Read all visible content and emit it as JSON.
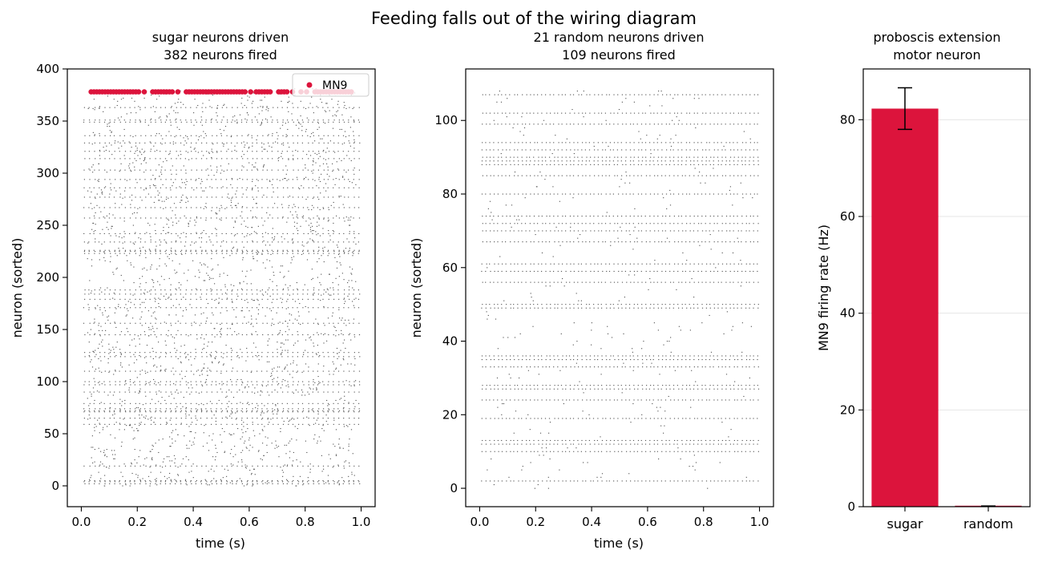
{
  "figure_title": "Feeding falls out of the wiring diagram",
  "chart_data": [
    {
      "type": "scatter",
      "title": "sugar neurons driven",
      "subtitle": "382 neurons fired",
      "xlabel": "time (s)",
      "ylabel": "neuron (sorted)",
      "xlim": [
        -0.05,
        1.05
      ],
      "ylim": [
        -20,
        400
      ],
      "xticks": [
        "0.0",
        "0.2",
        "0.4",
        "0.6",
        "0.8",
        "1.0"
      ],
      "yticks": [
        "0",
        "50",
        "100",
        "150",
        "200",
        "250",
        "300",
        "350",
        "400"
      ],
      "n_neurons": 382,
      "spikes_color": "#555555",
      "highlight": {
        "name": "MN9",
        "neuron_index": 378,
        "color": "#dc143c",
        "spike_times": [
          0.035,
          0.045,
          0.055,
          0.065,
          0.075,
          0.085,
          0.095,
          0.105,
          0.115,
          0.125,
          0.135,
          0.145,
          0.155,
          0.165,
          0.175,
          0.185,
          0.195,
          0.205,
          0.225,
          0.255,
          0.265,
          0.275,
          0.285,
          0.295,
          0.305,
          0.315,
          0.325,
          0.345,
          0.375,
          0.385,
          0.395,
          0.405,
          0.415,
          0.425,
          0.435,
          0.445,
          0.455,
          0.465,
          0.475,
          0.485,
          0.495,
          0.505,
          0.515,
          0.525,
          0.535,
          0.545,
          0.555,
          0.565,
          0.575,
          0.585,
          0.605,
          0.625,
          0.635,
          0.645,
          0.655,
          0.665,
          0.675,
          0.705,
          0.715,
          0.725,
          0.735,
          0.755,
          0.785,
          0.805,
          0.835,
          0.845,
          0.855,
          0.865,
          0.875,
          0.885,
          0.895,
          0.905,
          0.915,
          0.925,
          0.935,
          0.945,
          0.955,
          0.965
        ]
      },
      "legend": {
        "entries": [
          "MN9"
        ],
        "position": "top-right"
      },
      "grid": false
    },
    {
      "type": "scatter",
      "title": "21 random neurons driven",
      "subtitle": "109 neurons fired",
      "xlabel": "time (s)",
      "ylabel": "neuron (sorted)",
      "xlim": [
        -0.05,
        1.05
      ],
      "ylim": [
        -5,
        114
      ],
      "xticks": [
        "0.0",
        "0.2",
        "0.4",
        "0.6",
        "0.8",
        "1.0"
      ],
      "yticks": [
        "0",
        "20",
        "40",
        "60",
        "80",
        "100"
      ],
      "n_neurons": 109,
      "spikes_color": "#555555",
      "grid": false
    },
    {
      "type": "bar",
      "title": "proboscis extension",
      "subtitle": "motor neuron",
      "categories": [
        "sugar",
        "random"
      ],
      "values": [
        82.3,
        0.2
      ],
      "errors": [
        4.3,
        0
      ],
      "colors": [
        "#dc143c",
        "#dc143c"
      ],
      "ylabel": "MN9 firing rate (Hz)",
      "ylim": [
        0,
        90.5
      ],
      "yticks": [
        "0",
        "20",
        "40",
        "60",
        "80"
      ],
      "grid": "y"
    }
  ]
}
